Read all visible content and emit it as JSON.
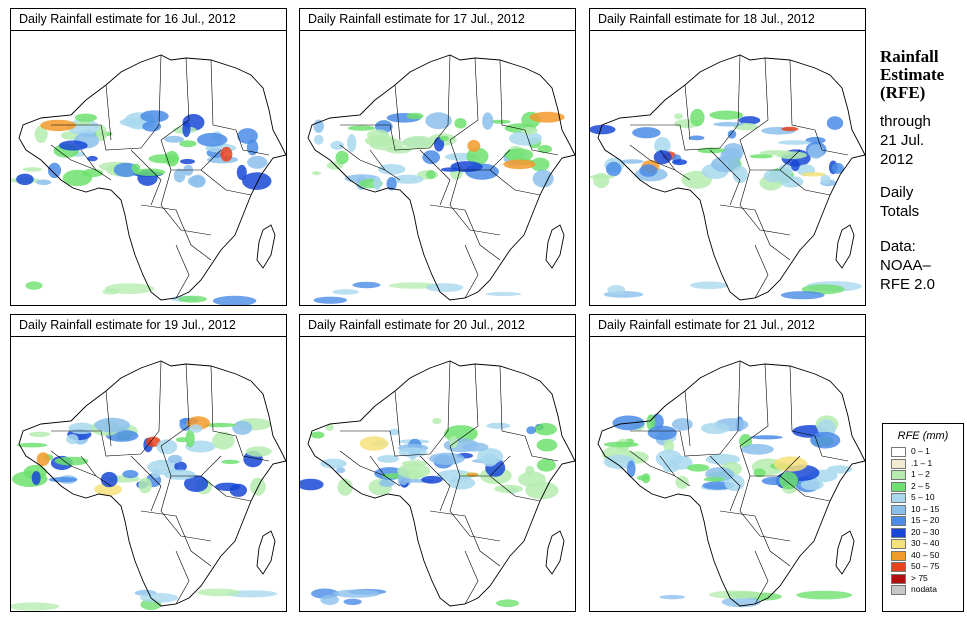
{
  "panels": [
    {
      "title": "Daily Rainfall estimate for  16 Jul., 2012"
    },
    {
      "title": "Daily Rainfall estimate for  17 Jul., 2012"
    },
    {
      "title": "Daily Rainfall estimate for  18 Jul., 2012"
    },
    {
      "title": "Daily Rainfall estimate for  19 Jul., 2012"
    },
    {
      "title": "Daily Rainfall estimate for  20 Jul., 2012"
    },
    {
      "title": "Daily Rainfall estimate for  21 Jul., 2012"
    }
  ],
  "side": {
    "title_line1": "Rainfall",
    "title_line2": "Estimate",
    "title_line3": "(RFE)",
    "through_line1": "through",
    "through_line2": "21 Jul.",
    "through_line3": "2012",
    "totals_line1": "Daily",
    "totals_line2": "Totals",
    "data_line1": "Data:",
    "data_line2": "NOAA–",
    "data_line3": "RFE 2.0"
  },
  "legend": {
    "title": "RFE (mm)",
    "items": [
      {
        "label": "0 – 1",
        "color": "#ffffff"
      },
      {
        "label": ".1 – 1",
        "color": "#f3ecd3"
      },
      {
        "label": "1 – 2",
        "color": "#b6ecb0"
      },
      {
        "label": "2 – 5",
        "color": "#6fe06f"
      },
      {
        "label": "5 – 10",
        "color": "#a9d8ee"
      },
      {
        "label": "10 – 15",
        "color": "#8cc0ec"
      },
      {
        "label": "15 – 20",
        "color": "#4a8ce6"
      },
      {
        "label": "20 – 30",
        "color": "#1748d6"
      },
      {
        "label": "30 – 40",
        "color": "#f6e27a"
      },
      {
        "label": "40 – 50",
        "color": "#f39a2c"
      },
      {
        "label": "50 – 75",
        "color": "#e8421c"
      },
      {
        "label": "> 75",
        "color": "#b40f0f"
      },
      {
        "label": "nodata",
        "color": "#c8c8c8"
      }
    ]
  }
}
